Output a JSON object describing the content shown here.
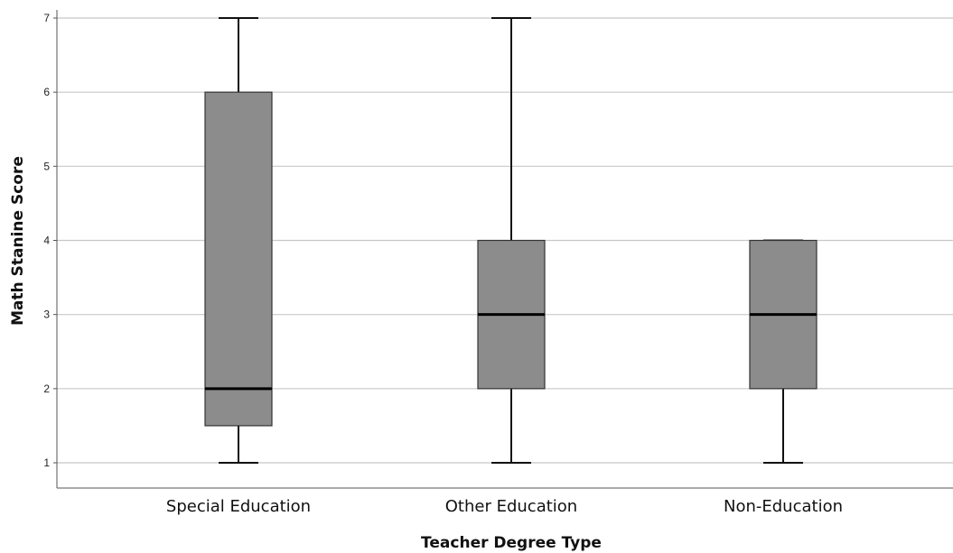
{
  "chart_data": {
    "type": "box",
    "title": "",
    "xlabel": "Teacher Degree Type",
    "ylabel": "Math Stanine Score",
    "ylim": [
      0.7,
      7.0
    ],
    "yticks": [
      1,
      2,
      3,
      4,
      5,
      6,
      7
    ],
    "grid": true,
    "categories": [
      "Special Education",
      "Other Education",
      "Non-Education"
    ],
    "boxes": [
      {
        "category": "Special Education",
        "min": 1,
        "q1": 1.5,
        "median": 2,
        "q3": 6,
        "max": 7
      },
      {
        "category": "Other Education",
        "min": 1,
        "q1": 2,
        "median": 3,
        "q3": 4,
        "max": 7
      },
      {
        "category": "Non-Education",
        "min": 1,
        "q1": 2,
        "median": 3,
        "q3": 4,
        "max": 4
      }
    ],
    "colors": {
      "box_fill": "#8c8c8c",
      "box_stroke": "#333333",
      "whisker": "#111111",
      "median": "#000000",
      "grid": "#c8c8c8",
      "axis": "#555555"
    }
  }
}
